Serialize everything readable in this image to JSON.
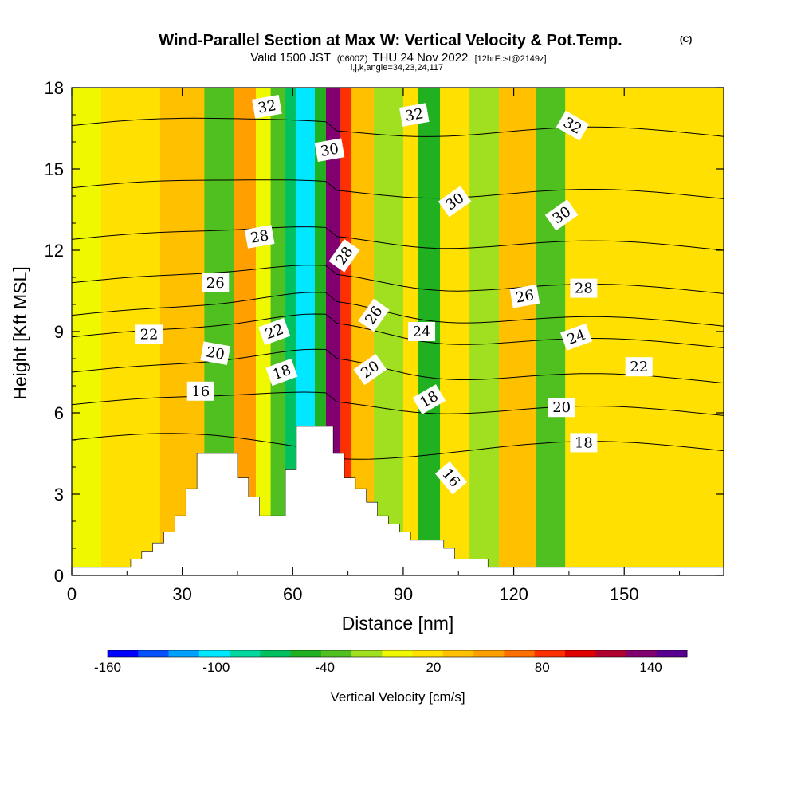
{
  "title": "Wind-Parallel Section at Max W: Vertical Velocity & Pot.Temp.",
  "copyright": "(C)",
  "subtitle_valid": "Valid 1500 JST",
  "subtitle_utc": "(0600Z)",
  "subtitle_date": "THU 24 Nov 2022",
  "subtitle_fcst": "[12hrFcst@2149z]",
  "subtitle_grid": "i,j,k,angle=34,23,24,117",
  "chart_data": {
    "type": "heatmap",
    "xlabel": "Distance [nm]",
    "ylabel": "Height [Kft MSL]",
    "xlim": [
      0,
      177
    ],
    "ylim": [
      0,
      18
    ],
    "x_ticks": [
      "0",
      "30",
      "60",
      "90",
      "120",
      "150"
    ],
    "y_ticks": [
      "0",
      "3",
      "6",
      "9",
      "12",
      "15",
      "18"
    ],
    "colorbar": {
      "label": "Vertical Velocity [cm/s]",
      "tick_labels": [
        "-160",
        "-100",
        "-40",
        "20",
        "80",
        "140"
      ],
      "tick_values": [
        -160,
        -100,
        -40,
        20,
        80,
        140
      ],
      "range": [
        -160,
        160
      ],
      "colors": [
        "#0000ff",
        "#0050ff",
        "#00a0ff",
        "#00e8ff",
        "#00d8a0",
        "#00c060",
        "#20b020",
        "#50c020",
        "#a0e020",
        "#f0f800",
        "#ffe000",
        "#ffc000",
        "#ffa000",
        "#ff7000",
        "#ff3000",
        "#e00000",
        "#b00030",
        "#800070",
        "#5a0090"
      ]
    },
    "terrain": [
      [
        0,
        0.3
      ],
      [
        16,
        0.3
      ],
      [
        16,
        0.6
      ],
      [
        19,
        0.6
      ],
      [
        19,
        0.9
      ],
      [
        22,
        0.9
      ],
      [
        22,
        1.2
      ],
      [
        25,
        1.2
      ],
      [
        25,
        1.6
      ],
      [
        28,
        1.6
      ],
      [
        28,
        2.2
      ],
      [
        31,
        2.2
      ],
      [
        31,
        3.2
      ],
      [
        34,
        3.2
      ],
      [
        34,
        4.5
      ],
      [
        45,
        4.5
      ],
      [
        45,
        3.6
      ],
      [
        48,
        3.6
      ],
      [
        48,
        2.9
      ],
      [
        51,
        2.9
      ],
      [
        51,
        2.2
      ],
      [
        58,
        2.2
      ],
      [
        58,
        3.9
      ],
      [
        61,
        3.9
      ],
      [
        61,
        5.5
      ],
      [
        71,
        5.5
      ],
      [
        71,
        4.5
      ],
      [
        74,
        4.5
      ],
      [
        74,
        3.6
      ],
      [
        77,
        3.6
      ],
      [
        77,
        3.2
      ],
      [
        80,
        3.2
      ],
      [
        80,
        2.7
      ],
      [
        83,
        2.7
      ],
      [
        83,
        2.2
      ],
      [
        86,
        2.2
      ],
      [
        86,
        1.9
      ],
      [
        89,
        1.9
      ],
      [
        89,
        1.6
      ],
      [
        92,
        1.6
      ],
      [
        92,
        1.3
      ],
      [
        101,
        1.3
      ],
      [
        101,
        1.0
      ],
      [
        104,
        1.0
      ],
      [
        104,
        0.6
      ],
      [
        113,
        0.6
      ],
      [
        113,
        0.3
      ],
      [
        177,
        0.3
      ]
    ],
    "w_bands": [
      {
        "x0": 0,
        "x1": 8,
        "w": 0
      },
      {
        "x0": 8,
        "x1": 24,
        "w": 15
      },
      {
        "x0": 24,
        "x1": 36,
        "w": 30
      },
      {
        "x0": 36,
        "x1": 44,
        "w": -30
      },
      {
        "x0": 44,
        "x1": 50,
        "w": 45
      },
      {
        "x0": 50,
        "x1": 54,
        "w": 0
      },
      {
        "x0": 54,
        "x1": 58,
        "w": -40
      },
      {
        "x0": 58,
        "x1": 61,
        "w": -60
      },
      {
        "x0": 61,
        "x1": 66,
        "w": -100
      },
      {
        "x0": 66,
        "x1": 69,
        "w": -55
      },
      {
        "x0": 69,
        "x1": 73,
        "w": 130
      },
      {
        "x0": 73,
        "x1": 76,
        "w": 80
      },
      {
        "x0": 76,
        "x1": 82,
        "w": 30
      },
      {
        "x0": 82,
        "x1": 90,
        "w": -10
      },
      {
        "x0": 90,
        "x1": 94,
        "w": 10
      },
      {
        "x0": 94,
        "x1": 100,
        "w": -50
      },
      {
        "x0": 100,
        "x1": 108,
        "w": 20
      },
      {
        "x0": 108,
        "x1": 116,
        "w": -10
      },
      {
        "x0": 116,
        "x1": 126,
        "w": 30
      },
      {
        "x0": 126,
        "x1": 134,
        "w": -35
      },
      {
        "x0": 134,
        "x1": 152,
        "w": 25
      },
      {
        "x0": 152,
        "x1": 166,
        "w": 15
      },
      {
        "x0": 166,
        "x1": 177,
        "w": 10
      }
    ],
    "isentropes": [
      {
        "value": 16,
        "y_left": 5.0,
        "bump": -0.2
      },
      {
        "value": 18,
        "y_left": 6.3,
        "bump": 0.6
      },
      {
        "value": 20,
        "y_left": 7.5,
        "bump": 1.0
      },
      {
        "value": 22,
        "y_left": 8.8,
        "bump": 1.0
      },
      {
        "value": 24,
        "y_left": 9.6,
        "bump": 1.0
      },
      {
        "value": 26,
        "y_left": 10.8,
        "bump": 0.8
      },
      {
        "value": 28,
        "y_left": 12.4,
        "bump": 0.6
      },
      {
        "value": 30,
        "y_left": 14.3,
        "bump": 0.4
      },
      {
        "value": 32,
        "y_left": 16.6,
        "bump": 0.3
      }
    ],
    "contour_labels": [
      {
        "text": "32",
        "x": 53,
        "y": 17.3,
        "rot": 10
      },
      {
        "text": "30",
        "x": 70,
        "y": 15.7,
        "rot": 10
      },
      {
        "text": "28",
        "x": 51,
        "y": 12.5,
        "rot": 10
      },
      {
        "text": "26",
        "x": 39,
        "y": 10.8,
        "rot": 0
      },
      {
        "text": "22",
        "x": 21,
        "y": 8.9,
        "rot": 0
      },
      {
        "text": "20",
        "x": 39,
        "y": 8.2,
        "rot": -10
      },
      {
        "text": "16",
        "x": 35,
        "y": 6.8,
        "rot": 0
      },
      {
        "text": "22",
        "x": 55,
        "y": 9.0,
        "rot": 20
      },
      {
        "text": "18",
        "x": 57,
        "y": 7.5,
        "rot": 20
      },
      {
        "text": "28",
        "x": 74,
        "y": 11.8,
        "rot": 55
      },
      {
        "text": "26",
        "x": 82,
        "y": 9.6,
        "rot": 55
      },
      {
        "text": "20",
        "x": 81,
        "y": 7.6,
        "rot": 35
      },
      {
        "text": "24",
        "x": 95,
        "y": 9.0,
        "rot": 0
      },
      {
        "text": "32",
        "x": 93,
        "y": 17.0,
        "rot": 10
      },
      {
        "text": "30",
        "x": 104,
        "y": 13.8,
        "rot": 35
      },
      {
        "text": "18",
        "x": 97,
        "y": 6.5,
        "rot": 30
      },
      {
        "text": "16",
        "x": 103,
        "y": 3.6,
        "rot": -50
      },
      {
        "text": "26",
        "x": 123,
        "y": 10.3,
        "rot": 10
      },
      {
        "text": "28",
        "x": 139,
        "y": 10.6,
        "rot": 0
      },
      {
        "text": "32",
        "x": 136,
        "y": 16.6,
        "rot": -30
      },
      {
        "text": "30",
        "x": 133,
        "y": 13.3,
        "rot": 35
      },
      {
        "text": "24",
        "x": 137,
        "y": 8.8,
        "rot": 20
      },
      {
        "text": "22",
        "x": 154,
        "y": 7.7,
        "rot": 0
      },
      {
        "text": "20",
        "x": 133,
        "y": 6.2,
        "rot": 0
      },
      {
        "text": "18",
        "x": 139,
        "y": 4.9,
        "rot": 0
      }
    ]
  }
}
